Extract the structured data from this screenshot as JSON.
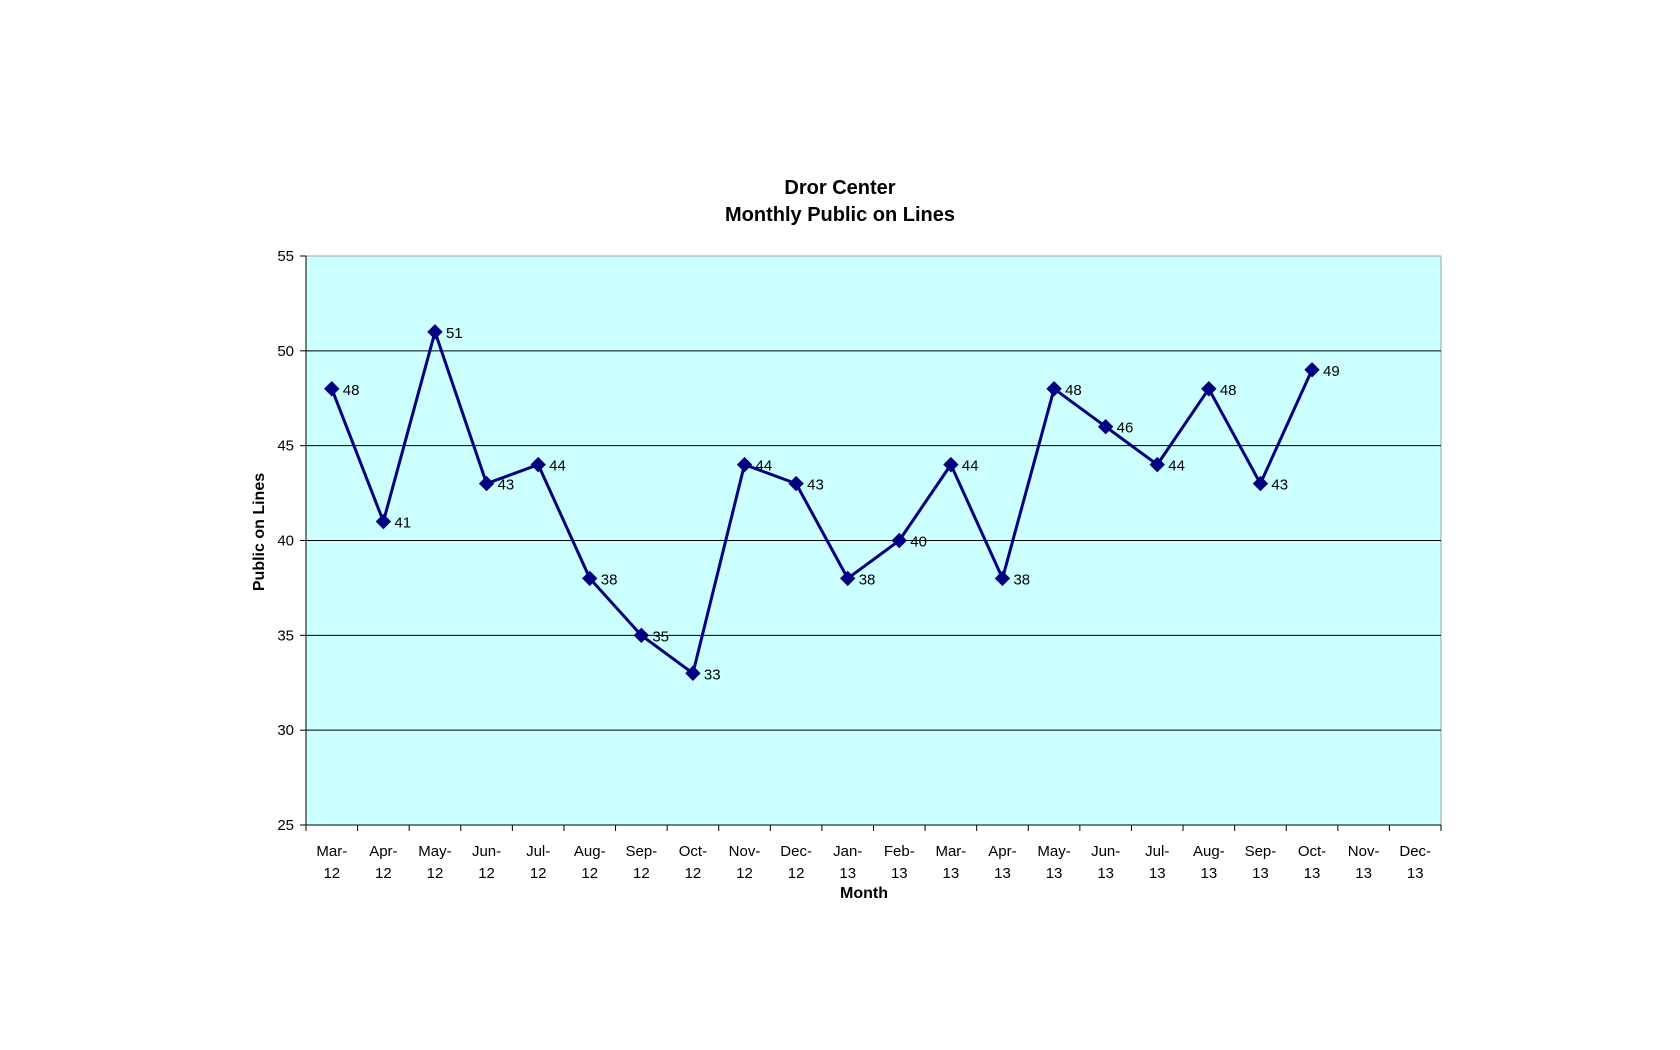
{
  "chart_data": {
    "type": "line",
    "title": "Dror Center",
    "subtitle": "Monthly Public on Lines",
    "xlabel": "Month",
    "ylabel": "Public on Lines",
    "ylim": [
      25,
      55
    ],
    "yticks": [
      "25",
      "30",
      "35",
      "40",
      "45",
      "50",
      "55"
    ],
    "categories": [
      [
        "Mar-",
        "12"
      ],
      [
        "Apr-",
        "12"
      ],
      [
        "May-",
        "12"
      ],
      [
        "Jun-",
        "12"
      ],
      [
        "Jul-",
        "12"
      ],
      [
        "Aug-",
        "12"
      ],
      [
        "Sep-",
        "12"
      ],
      [
        "Oct-",
        "12"
      ],
      [
        "Nov-",
        "12"
      ],
      [
        "Dec-",
        "12"
      ],
      [
        "Jan-",
        "13"
      ],
      [
        "Feb-",
        "13"
      ],
      [
        "Mar-",
        "13"
      ],
      [
        "Apr-",
        "13"
      ],
      [
        "May-",
        "13"
      ],
      [
        "Jun-",
        "13"
      ],
      [
        "Jul-",
        "13"
      ],
      [
        "Aug-",
        "13"
      ],
      [
        "Sep-",
        "13"
      ],
      [
        "Oct-",
        "13"
      ],
      [
        "Nov-",
        "13"
      ],
      [
        "Dec-",
        "13"
      ]
    ],
    "series": [
      {
        "values": [
          48,
          41,
          51,
          43,
          44,
          38,
          35,
          33,
          44,
          43,
          38,
          40,
          44,
          38,
          48,
          46,
          44,
          48,
          43,
          49,
          null,
          null
        ]
      }
    ],
    "grid": true,
    "plot_background": "#CCFFFF",
    "line_color": "#000080",
    "marker": "diamond",
    "data_labels": true,
    "legend": "none"
  }
}
